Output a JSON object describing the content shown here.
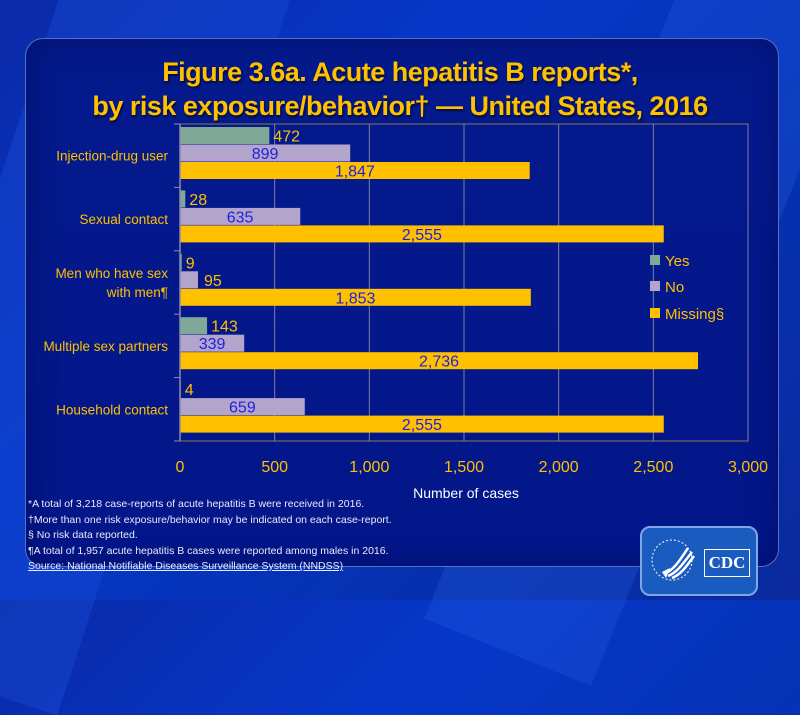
{
  "title": {
    "line1": "Figure 3.6a. Acute hepatitis B reports*,",
    "line2": "by risk exposure/behavior† — United States, 2016"
  },
  "chart_data": {
    "type": "bar",
    "orientation": "horizontal",
    "categories": [
      "Injection-drug user",
      "Sexual contact",
      "Men who have sex with men¶",
      "Multiple sex partners",
      "Household contact"
    ],
    "category_lines": [
      [
        "Injection-drug user"
      ],
      [
        "Sexual contact"
      ],
      [
        "Men who have sex",
        "with men¶"
      ],
      [
        "Multiple sex partners"
      ],
      [
        "Household contact"
      ]
    ],
    "series": [
      {
        "name": "Yes",
        "color": "#7fa898",
        "label_color": "#ffc000",
        "values": [
          472,
          28,
          9,
          143,
          4
        ],
        "labels": [
          "472",
          "28",
          "9",
          "143",
          "4"
        ]
      },
      {
        "name": "No",
        "color": "#b3a4cc",
        "label_color": "#1f1fe0",
        "values": [
          899,
          635,
          95,
          339,
          659
        ],
        "labels": [
          "899",
          "635",
          "95",
          "339",
          "659"
        ]
      },
      {
        "name": "Missing§",
        "color": "#ffc000",
        "label_color": "#1f1fe0",
        "values": [
          1847,
          2555,
          1853,
          2736,
          2555
        ],
        "labels": [
          "1,847",
          "2,555",
          "1,853",
          "2,736",
          "2,555"
        ]
      }
    ],
    "xlabel": "Number of cases",
    "ylabel": "",
    "xlim": [
      0,
      3000
    ],
    "xticks": [
      0,
      500,
      1000,
      1500,
      2000,
      2500,
      3000
    ],
    "xtick_labels": [
      "0",
      "500",
      "1,000",
      "1,500",
      "2,000",
      "2,500",
      "3,000"
    ],
    "grid": true,
    "legend_position": "right"
  },
  "footnotes": [
    "*A total of 3,218  case-reports of acute hepatitis B were  received in 2016.",
    "†More than one risk exposure/behavior may be indicated on each case-report.",
    "§ No risk data reported.",
    "¶A total of 1,957 acute hepatitis B cases were reported among males in 2016.",
    "Source: National Notifiable Diseases Surveillance System (NNDSS)"
  ],
  "logo": {
    "text": "CDC"
  },
  "colors": {
    "title": "#ffc000",
    "axis_text": "#ffc000",
    "background": "#041a8c"
  }
}
